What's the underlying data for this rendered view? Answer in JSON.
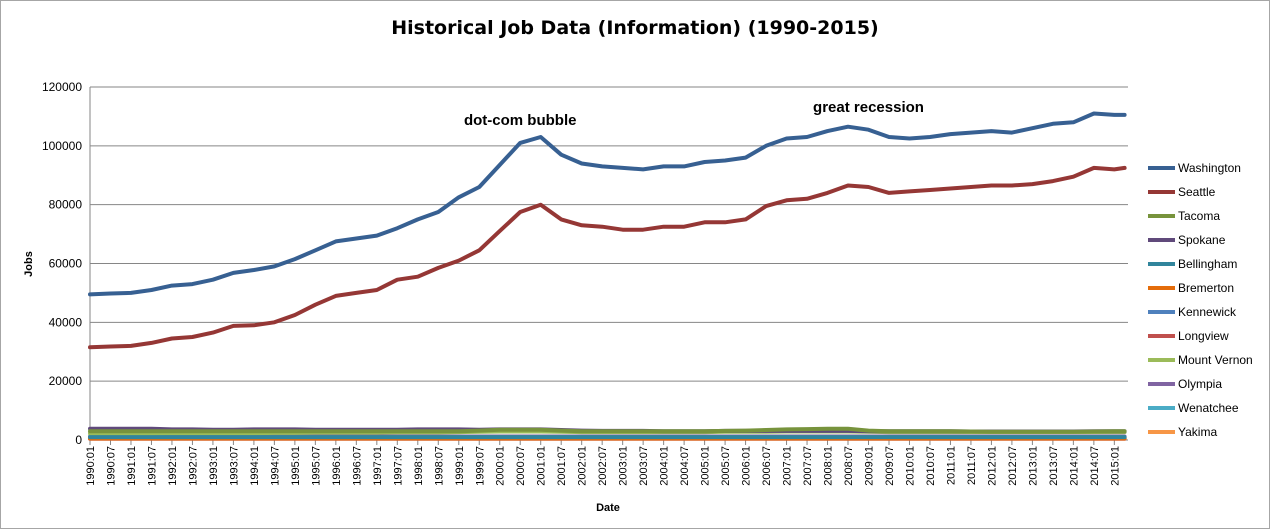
{
  "chart_data": {
    "type": "line",
    "title": "Historical Job Data (Information) (1990-2015)",
    "xlabel": "Date",
    "ylabel": "Jobs",
    "ylim": [
      0,
      120000
    ],
    "yticks": [
      0,
      20000,
      40000,
      60000,
      80000,
      100000,
      120000
    ],
    "grid": "horizontal",
    "legend_position": "right",
    "x_tick_labels": [
      "1990:01",
      "1990:07",
      "1991:01",
      "1991:07",
      "1992:01",
      "1992:07",
      "1993:01",
      "1993:07",
      "1994:01",
      "1994:07",
      "1995:01",
      "1995:07",
      "1996:01",
      "1996:07",
      "1997:01",
      "1997:07",
      "1998:01",
      "1998:07",
      "1999:01",
      "1999:07",
      "2000:01",
      "2000:07",
      "2001:01",
      "2001:07",
      "2002:01",
      "2002:07",
      "2003:01",
      "2003:07",
      "2004:01",
      "2004:07",
      "2005:01",
      "2005:07",
      "2006:01",
      "2006:07",
      "2007:01",
      "2007:07",
      "2008:01",
      "2008:07",
      "2009:01",
      "2009:07",
      "2010:01",
      "2010:07",
      "2011:01",
      "2011:07",
      "2012:01",
      "2012:07",
      "2013:01",
      "2013:07",
      "2014:01",
      "2014:07",
      "2015:01"
    ],
    "x": [
      "1990:01",
      "1990:07",
      "1991:01",
      "1991:07",
      "1992:01",
      "1992:07",
      "1993:01",
      "1993:07",
      "1994:01",
      "1994:07",
      "1995:01",
      "1995:07",
      "1996:01",
      "1996:07",
      "1997:01",
      "1997:07",
      "1998:01",
      "1998:07",
      "1999:01",
      "1999:07",
      "2000:01",
      "2000:07",
      "2001:01",
      "2001:07",
      "2002:01",
      "2002:07",
      "2003:01",
      "2003:07",
      "2004:01",
      "2004:07",
      "2005:01",
      "2005:07",
      "2006:01",
      "2006:07",
      "2007:01",
      "2007:07",
      "2008:01",
      "2008:07",
      "2009:01",
      "2009:07",
      "2010:01",
      "2010:07",
      "2011:01",
      "2011:07",
      "2012:01",
      "2012:07",
      "2013:01",
      "2013:07",
      "2014:01",
      "2014:07",
      "2015:01",
      "2015:04"
    ],
    "series": [
      {
        "name": "Washington",
        "color": "#376092",
        "values": [
          49500,
          49800,
          50000,
          51000,
          52500,
          53000,
          54500,
          56800,
          57800,
          59000,
          61500,
          64500,
          67500,
          68500,
          69500,
          72000,
          75000,
          77500,
          82500,
          86000,
          93500,
          101000,
          103000,
          97000,
          94000,
          93000,
          92500,
          92000,
          93000,
          93000,
          94500,
          95000,
          96000,
          100000,
          102500,
          103000,
          105000,
          106500,
          105500,
          103000,
          102500,
          103000,
          104000,
          104500,
          105000,
          104500,
          106000,
          107500,
          108000,
          111000,
          110500,
          110500
        ]
      },
      {
        "name": "Seattle",
        "color": "#953735",
        "values": [
          31500,
          31800,
          32000,
          33000,
          34500,
          35000,
          36500,
          38800,
          39000,
          40000,
          42500,
          46000,
          49000,
          50000,
          51000,
          54500,
          55500,
          58500,
          61000,
          64500,
          71000,
          77500,
          80000,
          75000,
          73000,
          72500,
          71500,
          71500,
          72500,
          72500,
          74000,
          74000,
          75000,
          79500,
          81500,
          82000,
          84000,
          86500,
          86000,
          84000,
          84500,
          85000,
          85500,
          86000,
          86500,
          86500,
          87000,
          88000,
          89500,
          92500,
          92000,
          92500
        ]
      },
      {
        "name": "Tacoma",
        "color": "#77933c",
        "values": [
          3000,
          3000,
          3000,
          3000,
          3000,
          3000,
          3000,
          3000,
          3000,
          3000,
          3000,
          3000,
          3000,
          3000,
          3000,
          3000,
          3000,
          3000,
          3000,
          3200,
          3500,
          3500,
          3500,
          3200,
          3000,
          3000,
          3000,
          3000,
          3000,
          3000,
          3000,
          3100,
          3200,
          3400,
          3600,
          3700,
          3800,
          3800,
          3200,
          3000,
          3000,
          3000,
          3000,
          2900,
          2800,
          2800,
          2800,
          2800,
          2800,
          2900,
          3000,
          3000
        ]
      },
      {
        "name": "Spokane",
        "color": "#604a7b",
        "values": [
          3800,
          3800,
          3800,
          3800,
          3600,
          3600,
          3500,
          3500,
          3600,
          3600,
          3600,
          3500,
          3500,
          3500,
          3500,
          3500,
          3600,
          3600,
          3600,
          3500,
          3600,
          3600,
          3600,
          3400,
          3200,
          3100,
          3100,
          3100,
          3000,
          3000,
          3000,
          3100,
          3100,
          3100,
          3100,
          3100,
          3100,
          3100,
          3000,
          3000,
          3000,
          3000,
          3000,
          2900,
          2900,
          2900,
          2900,
          2900,
          2900,
          3000,
          3000,
          3000
        ]
      },
      {
        "name": "Bellingham",
        "color": "#31859c",
        "values": [
          1000,
          1000,
          1000,
          1000,
          1000,
          1000,
          1000,
          1000,
          1000,
          1000,
          1000,
          1000,
          1000,
          1000,
          1000,
          1000,
          1000,
          1000,
          1000,
          1000,
          1000,
          1000,
          1000,
          1000,
          1000,
          1000,
          1000,
          1000,
          1000,
          1000,
          1000,
          1000,
          1000,
          1000,
          1000,
          1000,
          1000,
          1000,
          1000,
          1000,
          1000,
          1000,
          1000,
          1000,
          1000,
          1000,
          1000,
          1000,
          1000,
          1000,
          1000,
          1000
        ]
      },
      {
        "name": "Bremerton",
        "color": "#e46c0a",
        "values": [
          500,
          500,
          500,
          500,
          500,
          500,
          500,
          500,
          500,
          500,
          500,
          500,
          500,
          500,
          500,
          500,
          500,
          500,
          500,
          500,
          500,
          500,
          500,
          500,
          500,
          500,
          500,
          500,
          500,
          500,
          500,
          500,
          500,
          500,
          500,
          500,
          500,
          500,
          500,
          500,
          500,
          500,
          500,
          500,
          500,
          500,
          500,
          500,
          500,
          500,
          500,
          500
        ]
      },
      {
        "name": "Kennewick",
        "color": "#4f81bd",
        "values": [
          900,
          900,
          900,
          900,
          900,
          900,
          900,
          900,
          900,
          900,
          900,
          900,
          900,
          900,
          900,
          900,
          900,
          900,
          900,
          900,
          900,
          900,
          900,
          900,
          900,
          900,
          900,
          900,
          900,
          900,
          900,
          900,
          900,
          900,
          900,
          900,
          900,
          900,
          900,
          900,
          900,
          900,
          900,
          900,
          900,
          900,
          900,
          900,
          900,
          900,
          900,
          900
        ]
      },
      {
        "name": "Longview",
        "color": "#c0504d",
        "values": [
          400,
          400,
          400,
          400,
          400,
          400,
          400,
          400,
          400,
          400,
          400,
          400,
          400,
          400,
          400,
          400,
          400,
          400,
          400,
          400,
          400,
          400,
          400,
          400,
          400,
          400,
          400,
          400,
          400,
          400,
          400,
          400,
          400,
          400,
          400,
          400,
          400,
          400,
          400,
          400,
          400,
          400,
          400,
          400,
          400,
          400,
          400,
          400,
          400,
          400,
          400,
          400
        ]
      },
      {
        "name": "Mount Vernon",
        "color": "#9bbb59",
        "values": [
          2200,
          2200,
          2200,
          2200,
          2300,
          2300,
          2300,
          2300,
          2300,
          2400,
          2400,
          2500,
          2500,
          2500,
          2500,
          2600,
          2600,
          2600,
          2700,
          2800,
          2900,
          2900,
          2900,
          2800,
          2700,
          2700,
          2700,
          2700,
          2700,
          2700,
          2700,
          2800,
          2800,
          2800,
          2900,
          2900,
          2900,
          2900,
          2800,
          2700,
          2700,
          2700,
          2700,
          2700,
          2700,
          2700,
          2700,
          2700,
          2700,
          2700,
          2700,
          2700
        ]
      },
      {
        "name": "Olympia",
        "color": "#8064a2",
        "values": [
          1200,
          1200,
          1200,
          1200,
          1200,
          1200,
          1200,
          1200,
          1200,
          1200,
          1200,
          1200,
          1200,
          1200,
          1200,
          1200,
          1200,
          1200,
          1200,
          1200,
          1200,
          1200,
          1200,
          1200,
          1200,
          1200,
          1200,
          1200,
          1200,
          1200,
          1200,
          1200,
          1200,
          1200,
          1200,
          1200,
          1200,
          1200,
          1200,
          1200,
          1200,
          1200,
          1200,
          1200,
          1200,
          1200,
          1200,
          1200,
          1200,
          1200,
          1200,
          1200
        ]
      },
      {
        "name": "Wenatchee",
        "color": "#4bacc6",
        "values": [
          600,
          600,
          600,
          600,
          600,
          600,
          600,
          600,
          600,
          600,
          600,
          600,
          600,
          600,
          600,
          600,
          600,
          600,
          600,
          600,
          600,
          600,
          600,
          600,
          600,
          600,
          600,
          600,
          600,
          600,
          600,
          600,
          600,
          600,
          600,
          600,
          600,
          600,
          600,
          600,
          600,
          600,
          600,
          600,
          600,
          600,
          600,
          600,
          600,
          600,
          600,
          600
        ]
      },
      {
        "name": "Yakima",
        "color": "#f79646",
        "values": [
          700,
          700,
          700,
          700,
          700,
          700,
          700,
          700,
          700,
          700,
          700,
          700,
          700,
          700,
          700,
          700,
          700,
          700,
          700,
          700,
          700,
          700,
          700,
          700,
          700,
          700,
          700,
          700,
          700,
          700,
          700,
          700,
          700,
          700,
          700,
          700,
          700,
          700,
          700,
          700,
          700,
          700,
          700,
          700,
          700,
          700,
          700,
          700,
          700,
          700,
          700,
          700
        ]
      }
    ],
    "annotations": [
      {
        "text": "dot-com bubble",
        "x": "2000:07",
        "y": 107000
      },
      {
        "text": "great recession",
        "x": "2009:01",
        "y": 111500
      }
    ]
  }
}
